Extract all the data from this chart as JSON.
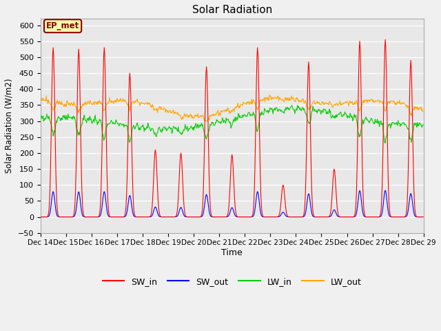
{
  "title": "Solar Radiation",
  "xlabel": "Time",
  "ylabel": "Solar Radiation (W/m2)",
  "ylim": [
    -50,
    620
  ],
  "yticks": [
    -50,
    0,
    50,
    100,
    150,
    200,
    250,
    300,
    350,
    400,
    450,
    500,
    550,
    600
  ],
  "annotation_text": "EP_met",
  "series_colors": {
    "SW_in": "#ff0000",
    "SW_out": "#0000ff",
    "LW_in": "#00cc00",
    "LW_out": "#ffa500"
  },
  "fig_bg_color": "#f0f0f0",
  "plot_bg_color": "#e8e8e8",
  "start_day": 14,
  "end_day": 29,
  "legend_entries": [
    "SW_in",
    "SW_out",
    "LW_in",
    "LW_out"
  ],
  "peak_heights_sw_in": [
    530,
    525,
    530,
    450,
    210,
    200,
    470,
    195,
    530,
    100,
    485,
    150,
    550,
    555,
    490
  ],
  "sw_out_ratio": 0.15,
  "lw_in_base": 305,
  "lw_out_base": 355
}
